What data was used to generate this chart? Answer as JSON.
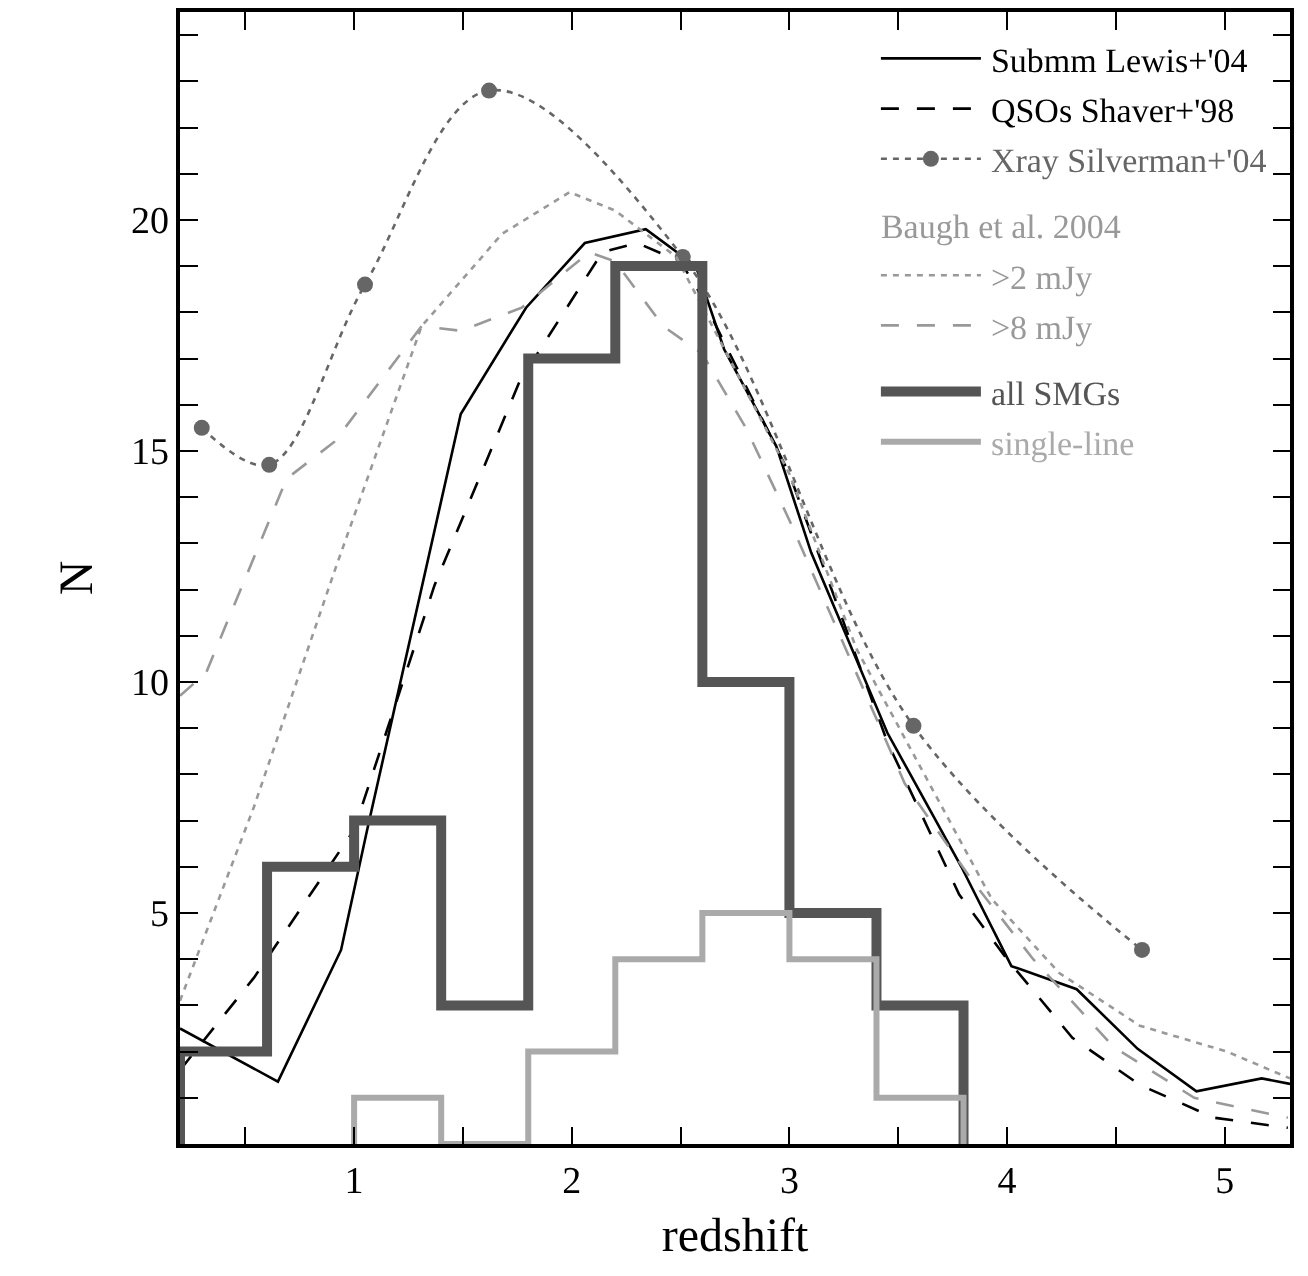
{
  "chart_data": {
    "type": "line",
    "xlabel": "redshift",
    "ylabel": "N",
    "legend_title": "Baugh et al. 2004",
    "xlim": [
      0.2,
      5.3
    ],
    "ylim": [
      0,
      24.5
    ],
    "xticks": [
      {
        "value": 0.5,
        "label": null
      },
      1,
      {
        "value": 1.5,
        "label": null
      },
      2,
      {
        "value": 2.5,
        "label": null
      },
      3,
      {
        "value": 3.5,
        "label": null
      },
      4,
      {
        "value": 4.5,
        "label": null
      },
      5
    ],
    "yticks": [
      {
        "value": 1,
        "label": null
      },
      {
        "value": 2,
        "label": null
      },
      {
        "value": 3,
        "label": null
      },
      {
        "value": 4,
        "label": null
      },
      5,
      {
        "value": 6,
        "label": null
      },
      {
        "value": 7,
        "label": null
      },
      {
        "value": 8,
        "label": null
      },
      {
        "value": 9,
        "label": null
      },
      10,
      {
        "value": 11,
        "label": null
      },
      {
        "value": 12,
        "label": null
      },
      {
        "value": 13,
        "label": null
      },
      {
        "value": 14,
        "label": null
      },
      15,
      {
        "value": 16,
        "label": null
      },
      {
        "value": 17,
        "label": null
      },
      {
        "value": 18,
        "label": null
      },
      {
        "value": 19,
        "label": null
      },
      20,
      {
        "value": 21,
        "label": null
      },
      {
        "value": 22,
        "label": null
      },
      {
        "value": 23,
        "label": null
      },
      {
        "value": 24,
        "label": null
      }
    ],
    "grid": false,
    "legend": "top right",
    "series": [
      {
        "name": "Submm Lewis+'04",
        "color": "#000000",
        "line_style": "solid",
        "x": [
          0.2,
          0.65,
          0.94,
          1.06,
          1.49,
          1.79,
          2.06,
          2.34,
          2.57,
          2.7,
          2.94,
          3.1,
          3.45,
          3.79,
          4.02,
          4.32,
          4.6,
          4.87,
          5.17,
          5.3
        ],
        "values": [
          2.5,
          1.35,
          4.2,
          6.8,
          15.8,
          18.1,
          19.5,
          19.8,
          19.0,
          17.2,
          15.1,
          12.8,
          8.9,
          6.0,
          3.85,
          3.35,
          2.06,
          1.14,
          1.42,
          1.3
        ]
      },
      {
        "name": "QSOs Shaver+'98",
        "color": "#000000",
        "line_style": "dashed",
        "x": [
          0.2,
          0.54,
          1.0,
          1.28,
          1.37,
          1.76,
          2.14,
          2.3,
          2.5,
          2.59,
          3.0,
          3.45,
          3.78,
          4.0,
          4.3,
          4.61,
          4.95,
          5.29
        ],
        "values": [
          1.6,
          3.6,
          6.8,
          10.8,
          12.1,
          16.5,
          19.3,
          19.5,
          19.1,
          18.4,
          14.5,
          8.7,
          5.4,
          4.0,
          2.3,
          1.28,
          0.57,
          0.35
        ]
      },
      {
        "name": "Xray Silverman+'04",
        "color": "#666666",
        "line_style": "dotted",
        "marker": "circle",
        "x": [
          0.3,
          0.61,
          1.05,
          1.62,
          2.51,
          3.57,
          4.62
        ],
        "values": [
          15.5,
          14.7,
          18.6,
          22.8,
          19.2,
          9.05,
          4.2
        ]
      },
      {
        "name": ">2 mJy",
        "color": "#999999",
        "line_style": "dotted",
        "x": [
          0.2,
          0.54,
          0.91,
          1.31,
          1.68,
          1.99,
          2.2,
          2.48,
          3.0,
          3.31,
          3.93,
          4.24,
          4.61,
          5.01,
          5.3
        ],
        "values": [
          3.1,
          7.3,
          12.4,
          17.7,
          19.7,
          20.6,
          20.2,
          19.2,
          14.5,
          10.7,
          5.3,
          3.7,
          2.56,
          2.0,
          1.42
        ]
      },
      {
        "name": ">8 mJy",
        "color": "#999999",
        "line_style": "dashed",
        "x": [
          0.2,
          0.32,
          0.69,
          0.91,
          1.31,
          1.49,
          1.77,
          2.08,
          2.2,
          2.42,
          2.6,
          2.8,
          3.0,
          3.53,
          3.84,
          4.12,
          4.49,
          4.86,
          5.29
        ],
        "values": [
          9.7,
          10.2,
          14.4,
          15.2,
          17.7,
          17.6,
          18.1,
          19.3,
          19.1,
          17.7,
          17.1,
          15.5,
          13.5,
          7.8,
          5.7,
          4.0,
          2.1,
          1.0,
          0.57
        ]
      },
      {
        "name": "all SMGs",
        "type": "histogram",
        "color": "#555555",
        "bins": [
          0.2,
          0.6,
          1.0,
          1.4,
          1.8,
          2.2,
          2.6,
          3.0,
          3.4,
          3.8
        ],
        "values": [
          2,
          6,
          7,
          3,
          17,
          19,
          10,
          5,
          3
        ]
      },
      {
        "name": "single-line",
        "type": "histogram",
        "color": "#aaaaaa",
        "bins": [
          1.0,
          1.4,
          1.8,
          2.2,
          2.6,
          3.0,
          3.4,
          3.8
        ],
        "values": [
          1,
          0,
          2,
          4,
          5,
          4,
          1
        ]
      }
    ]
  }
}
